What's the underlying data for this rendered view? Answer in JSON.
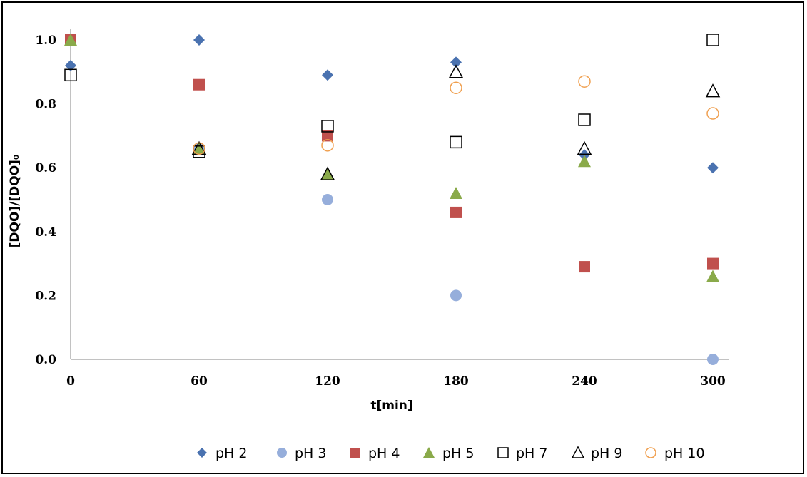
{
  "chart_data": {
    "type": "scatter",
    "title": "",
    "xlabel": "t[min]",
    "ylabel": "[DQO]/[DQO]₀",
    "xlim": [
      0,
      300
    ],
    "ylim": [
      0,
      1.0
    ],
    "xticks": [
      0,
      60,
      120,
      180,
      240,
      300
    ],
    "yticks": [
      "0.0",
      "0.2",
      "0.4",
      "0.6",
      "0.8",
      "1.0"
    ],
    "grid": false,
    "legend_position": "bottom",
    "series": [
      {
        "name": "pH 2",
        "marker": "diamond",
        "color": "#4a72b0",
        "filled": true,
        "x": [
          0,
          60,
          120,
          180,
          240,
          300
        ],
        "y": [
          0.92,
          1.0,
          0.89,
          0.93,
          0.64,
          0.6
        ]
      },
      {
        "name": "pH 3",
        "marker": "circle",
        "color": "#96aedb",
        "filled": true,
        "x": [
          60,
          120,
          180,
          300
        ],
        "y": [
          0.66,
          0.5,
          0.2,
          0.0
        ]
      },
      {
        "name": "pH 4",
        "marker": "square",
        "color": "#c0504d",
        "filled": true,
        "x": [
          0,
          60,
          120,
          180,
          240,
          300
        ],
        "y": [
          1.0,
          0.86,
          0.7,
          0.46,
          0.29,
          0.3
        ]
      },
      {
        "name": "pH 5",
        "marker": "triangle",
        "color": "#8aaa4a",
        "filled": true,
        "x": [
          0,
          60,
          120,
          180,
          240,
          300
        ],
        "y": [
          1.0,
          0.66,
          0.58,
          0.52,
          0.62,
          0.26
        ]
      },
      {
        "name": "pH 7",
        "marker": "square",
        "color": "#000000",
        "filled": false,
        "x": [
          0,
          60,
          120,
          180,
          240,
          300
        ],
        "y": [
          0.89,
          0.65,
          0.73,
          0.68,
          0.75,
          1.0
        ]
      },
      {
        "name": "pH 9",
        "marker": "triangle",
        "color": "#000000",
        "filled": false,
        "x": [
          60,
          120,
          180,
          240,
          300
        ],
        "y": [
          0.66,
          0.58,
          0.9,
          0.66,
          0.84
        ]
      },
      {
        "name": "pH 10",
        "marker": "circle",
        "color": "#f0a050",
        "filled": false,
        "x": [
          60,
          120,
          180,
          240,
          300
        ],
        "y": [
          0.66,
          0.67,
          0.85,
          0.87,
          0.77
        ]
      }
    ]
  }
}
